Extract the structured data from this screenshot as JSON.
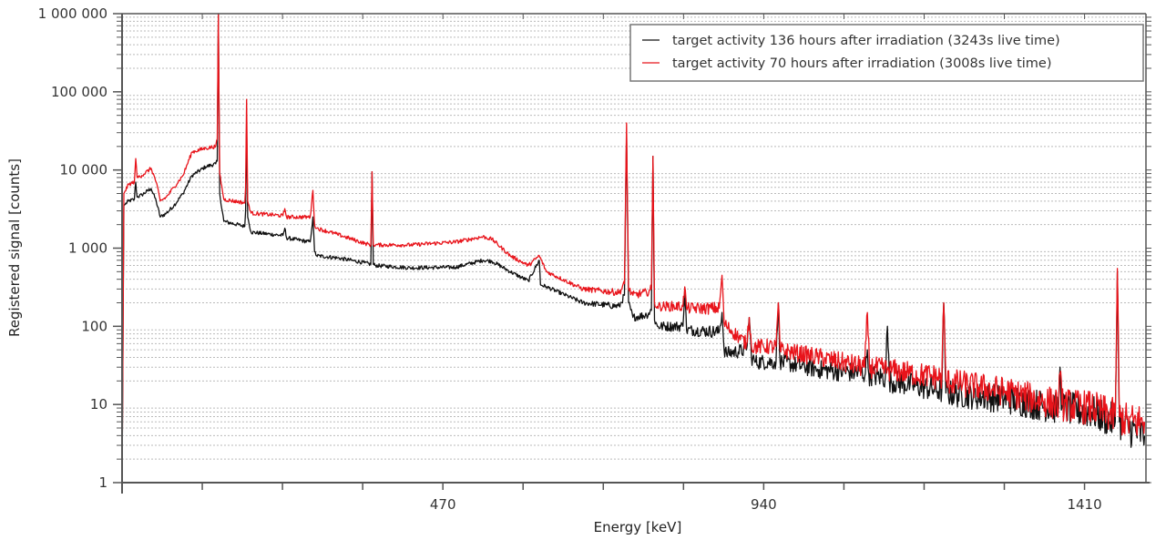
{
  "chart_data": {
    "type": "line",
    "title": "",
    "xlabel": "Energy [keV]",
    "ylabel": "Registered signal [counts]",
    "xlim": [
      0,
      1500
    ],
    "ylim": [
      1,
      1000000
    ],
    "yscale": "log",
    "grid": "horizontal dotted, major and minor decades",
    "legend_position": "top-right",
    "x_ticks": [
      117.5,
      235,
      352.5,
      470,
      587.5,
      705,
      822.5,
      940,
      1057.5,
      1175,
      1292.5,
      1410
    ],
    "x_tick_labels": [
      {
        "value": 470,
        "label": "470"
      },
      {
        "value": 940,
        "label": "940"
      },
      {
        "value": 1410,
        "label": "1410"
      }
    ],
    "y_tick_labels": [
      {
        "value": 1,
        "label": "1"
      },
      {
        "value": 10,
        "label": "10"
      },
      {
        "value": 100,
        "label": "100"
      },
      {
        "value": 1000,
        "label": "1 000"
      },
      {
        "value": 10000,
        "label": "10 000"
      },
      {
        "value": 100000,
        "label": "100 000"
      },
      {
        "value": 1000000,
        "label": "1 000 000"
      }
    ],
    "series": [
      {
        "name": "target activity 136 hours after irradiation (3243s live time)",
        "color": "#111111",
        "points": [
          [
            0,
            1
          ],
          [
            2.7,
            3500
          ],
          [
            9.3,
            4000
          ],
          [
            18,
            4200
          ],
          [
            20,
            7000
          ],
          [
            22,
            4500
          ],
          [
            29,
            4800
          ],
          [
            42.6,
            5800
          ],
          [
            50,
            4000
          ],
          [
            55.9,
            2500
          ],
          [
            65,
            2800
          ],
          [
            75.9,
            3500
          ],
          [
            89.2,
            5000
          ],
          [
            102.5,
            8500
          ],
          [
            122.5,
            11000
          ],
          [
            137.2,
            12000
          ],
          [
            139.5,
            13000
          ],
          [
            141.1,
            1000000
          ],
          [
            143,
            5000
          ],
          [
            149.1,
            2200
          ],
          [
            179.8,
            1900
          ],
          [
            181,
            3000
          ],
          [
            182.4,
            40000
          ],
          [
            184,
            2500
          ],
          [
            189.1,
            1600
          ],
          [
            235.7,
            1450
          ],
          [
            238.4,
            1800
          ],
          [
            241,
            1350
          ],
          [
            275.6,
            1200
          ],
          [
            279.6,
            2500
          ],
          [
            282,
            900
          ],
          [
            285,
            800
          ],
          [
            315.6,
            750
          ],
          [
            355.5,
            650
          ],
          [
            364.5,
            620
          ],
          [
            366.2,
            9500
          ],
          [
            368,
            620
          ],
          [
            371.5,
            600
          ],
          [
            422.1,
            560
          ],
          [
            488.7,
            570
          ],
          [
            528.6,
            700
          ],
          [
            542,
            680
          ],
          [
            568.6,
            500
          ],
          [
            595.2,
            380
          ],
          [
            611.2,
            700
          ],
          [
            613,
            340
          ],
          [
            621.7,
            320
          ],
          [
            675.1,
            200
          ],
          [
            728.4,
            180
          ],
          [
            736,
            250
          ],
          [
            739,
            30000
          ],
          [
            742,
            200
          ],
          [
            748.4,
            130
          ],
          [
            768.3,
            140
          ],
          [
            775.5,
            160
          ],
          [
            777.7,
            15000
          ],
          [
            780,
            120
          ],
          [
            784.3,
            100
          ],
          [
            821.6,
            100
          ],
          [
            824.3,
            300
          ],
          [
            827,
            90
          ],
          [
            874.9,
            85
          ],
          [
            878.9,
            150
          ],
          [
            882,
            50
          ],
          [
            885.5,
            45
          ],
          [
            914.8,
            50
          ],
          [
            918.8,
            130
          ],
          [
            922,
            40
          ],
          [
            928.1,
            35
          ],
          [
            958,
            35
          ],
          [
            961.4,
            200
          ],
          [
            964,
            35
          ],
          [
            1021.3,
            28
          ],
          [
            1089,
            25
          ],
          [
            1091.9,
            50
          ],
          [
            1094,
            24
          ],
          [
            1118,
            22
          ],
          [
            1121.2,
            100
          ],
          [
            1124,
            20
          ],
          [
            1154.5,
            18
          ],
          [
            1201,
            15
          ],
          [
            1203.8,
            200
          ],
          [
            1207,
            14
          ],
          [
            1287.7,
            12
          ],
          [
            1372,
            9
          ],
          [
            1374.2,
            30
          ],
          [
            1377,
            9
          ],
          [
            1420.8,
            8
          ],
          [
            1455,
            6
          ],
          [
            1458.1,
            500
          ],
          [
            1461,
            6
          ],
          [
            1474.1,
            5
          ],
          [
            1498,
            4
          ]
        ]
      },
      {
        "name": "target activity 70 hours after irradiation (3008s live time)",
        "color": "#e8141b",
        "points": [
          [
            0,
            1
          ],
          [
            2.7,
            5000
          ],
          [
            9.3,
            6500
          ],
          [
            18,
            7000
          ],
          [
            20,
            14000
          ],
          [
            22,
            8000
          ],
          [
            29,
            8500
          ],
          [
            42.6,
            10500
          ],
          [
            50,
            7000
          ],
          [
            55.9,
            4000
          ],
          [
            65,
            4500
          ],
          [
            75.9,
            6000
          ],
          [
            89.2,
            8500
          ],
          [
            102.5,
            17000
          ],
          [
            122.5,
            19000
          ],
          [
            137.2,
            20000
          ],
          [
            139.5,
            25000
          ],
          [
            141.1,
            1000000
          ],
          [
            143,
            9000
          ],
          [
            149.1,
            4200
          ],
          [
            179.8,
            3800
          ],
          [
            181,
            6000
          ],
          [
            182.4,
            80000
          ],
          [
            184,
            4000
          ],
          [
            189.1,
            2800
          ],
          [
            235.7,
            2600
          ],
          [
            238.4,
            3200
          ],
          [
            241,
            2500
          ],
          [
            275.6,
            2500
          ],
          [
            279.6,
            5500
          ],
          [
            282,
            2000
          ],
          [
            285,
            1800
          ],
          [
            315.6,
            1500
          ],
          [
            355.5,
            1150
          ],
          [
            364.5,
            1100
          ],
          [
            366.2,
            9500
          ],
          [
            368,
            1100
          ],
          [
            371.5,
            1100
          ],
          [
            422.1,
            1100
          ],
          [
            488.7,
            1200
          ],
          [
            528.6,
            1400
          ],
          [
            542,
            1300
          ],
          [
            568.6,
            800
          ],
          [
            595.2,
            600
          ],
          [
            611.2,
            800
          ],
          [
            621.7,
            500
          ],
          [
            675.1,
            300
          ],
          [
            728.4,
            270
          ],
          [
            736,
            350
          ],
          [
            739,
            40000
          ],
          [
            742,
            300
          ],
          [
            748.4,
            250
          ],
          [
            768.3,
            270
          ],
          [
            775.5,
            300
          ],
          [
            777.7,
            15000
          ],
          [
            780,
            200
          ],
          [
            784.3,
            180
          ],
          [
            821.6,
            180
          ],
          [
            824.3,
            320
          ],
          [
            827,
            170
          ],
          [
            874.9,
            170
          ],
          [
            878.9,
            450
          ],
          [
            882,
            110
          ],
          [
            885.5,
            100
          ],
          [
            914.8,
            60
          ],
          [
            918.8,
            130
          ],
          [
            922,
            55
          ],
          [
            958,
            55
          ],
          [
            961.4,
            200
          ],
          [
            964,
            50
          ],
          [
            1021.3,
            40
          ],
          [
            1088,
            30
          ],
          [
            1091.9,
            150
          ],
          [
            1095,
            30
          ],
          [
            1121.2,
            28
          ],
          [
            1154.5,
            25
          ],
          [
            1201,
            22
          ],
          [
            1203.8,
            200
          ],
          [
            1207,
            20
          ],
          [
            1287.7,
            15
          ],
          [
            1372,
            10
          ],
          [
            1374.2,
            25
          ],
          [
            1377,
            10
          ],
          [
            1420.8,
            9
          ],
          [
            1455,
            7
          ],
          [
            1458.1,
            550
          ],
          [
            1461,
            7
          ],
          [
            1474.1,
            6
          ],
          [
            1498,
            6
          ]
        ]
      }
    ]
  }
}
